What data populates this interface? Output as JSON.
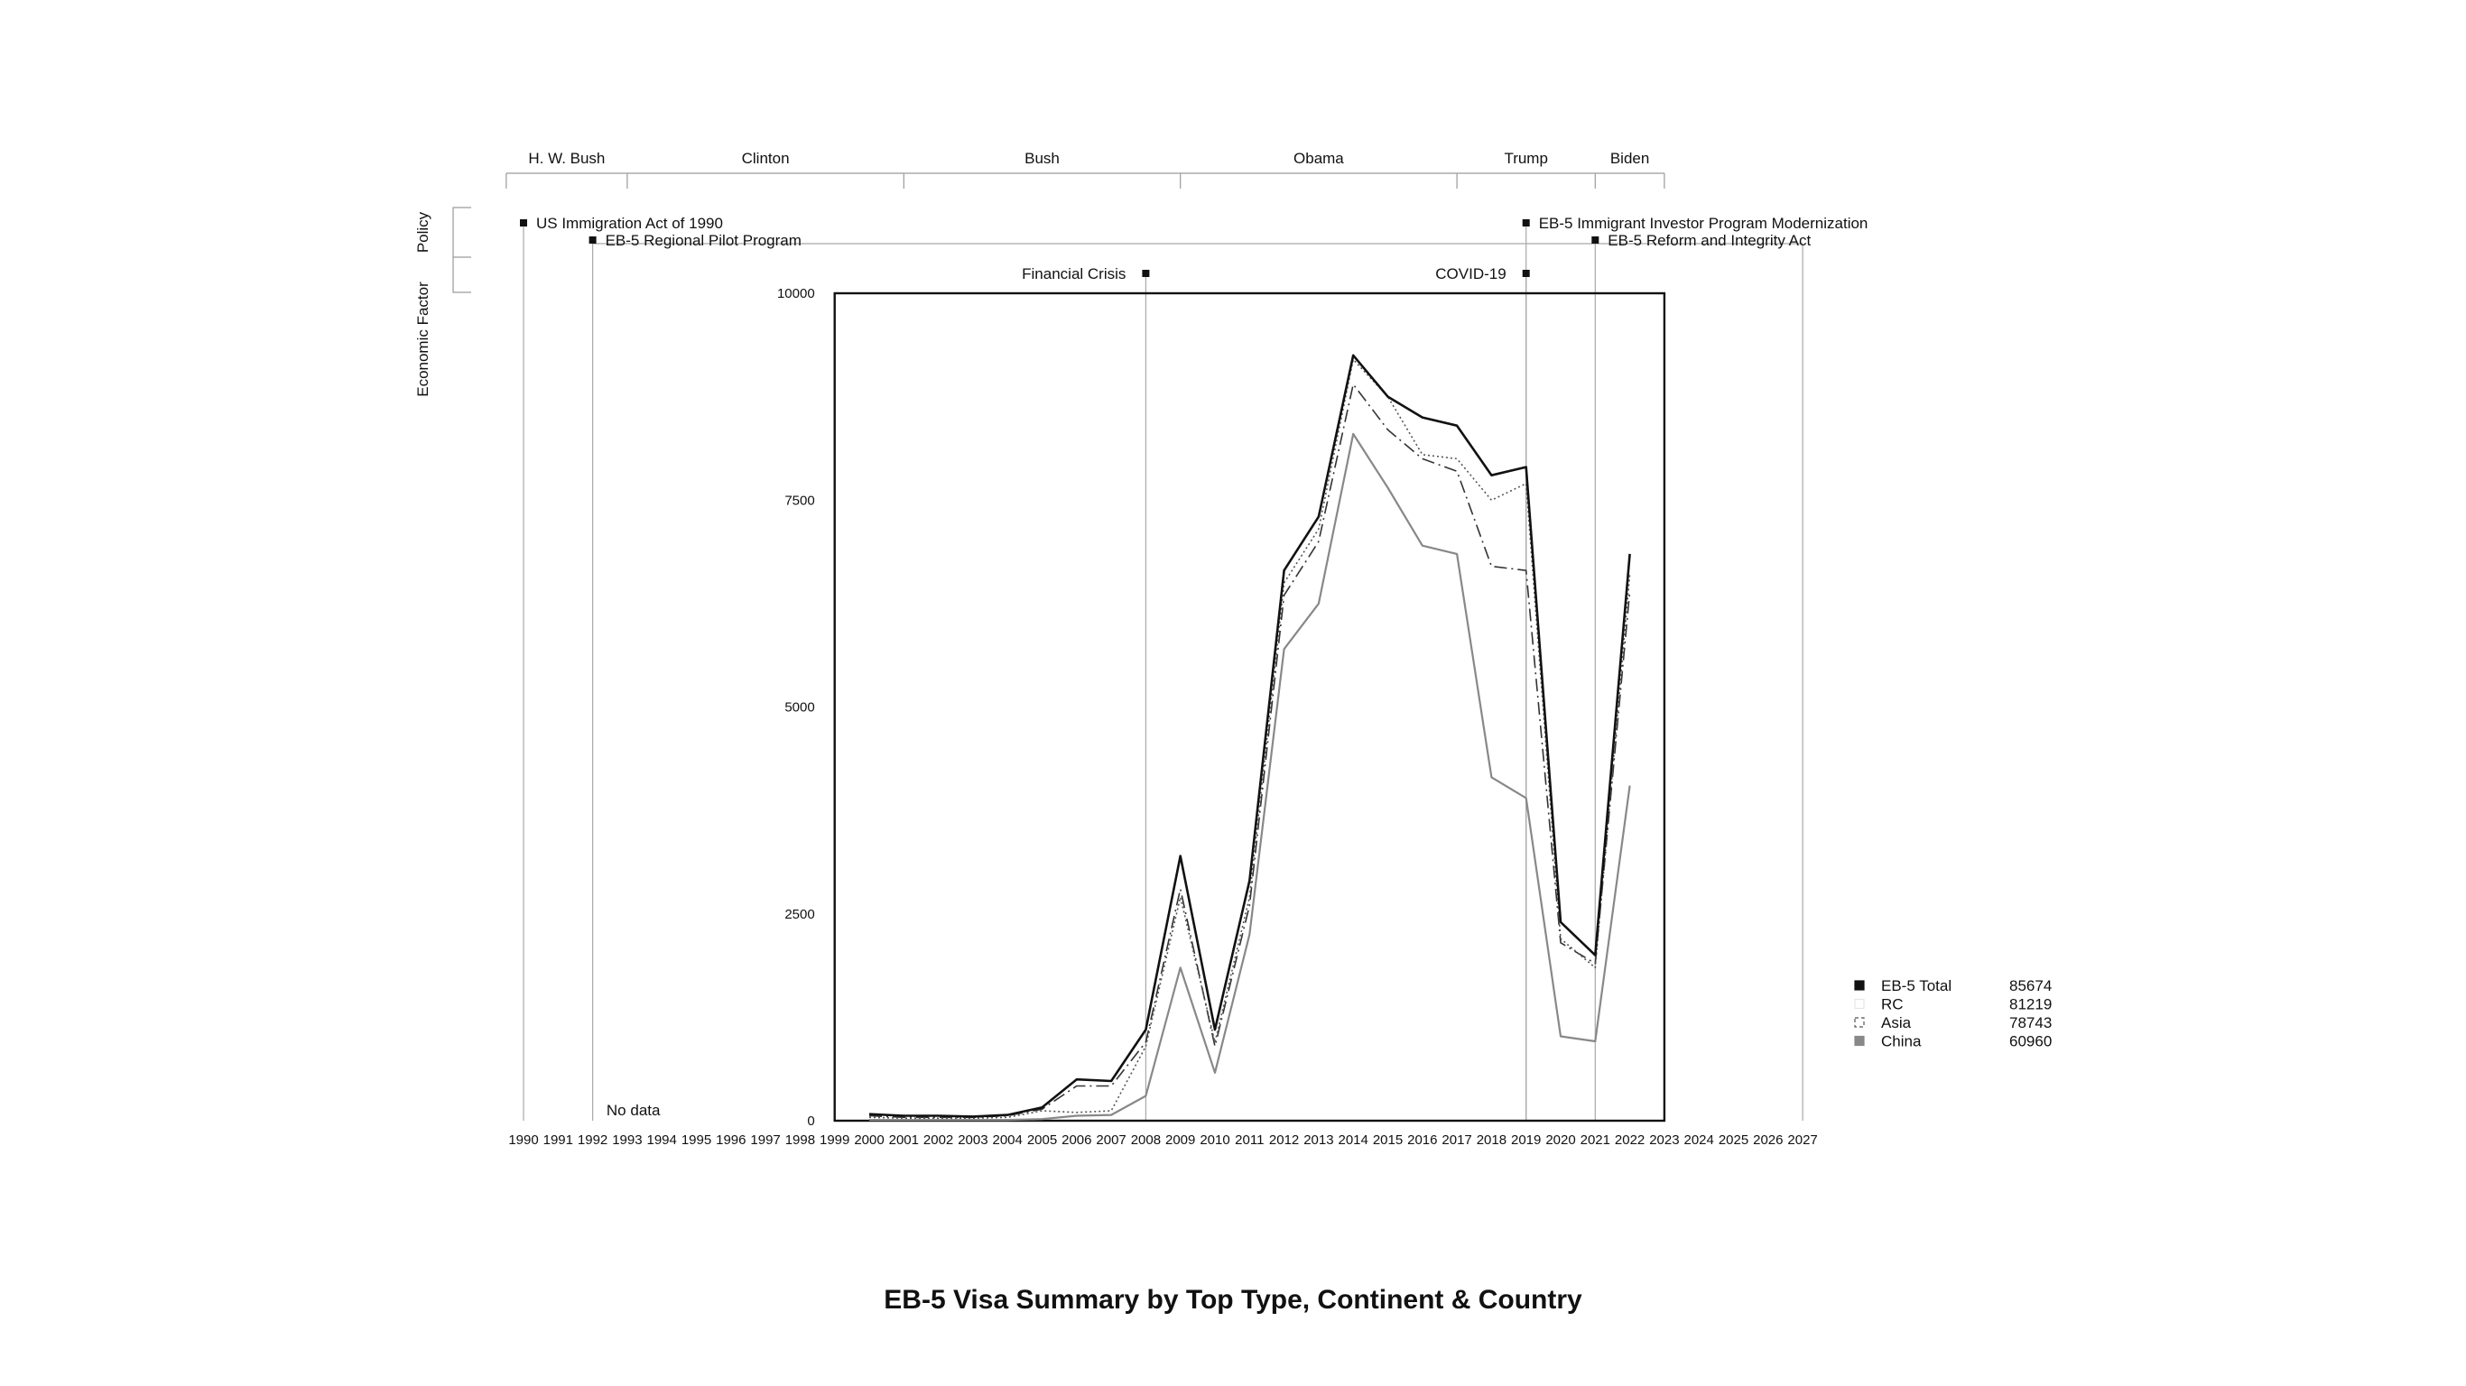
{
  "chart_data": {
    "type": "line",
    "title": "EB-5 Visa Summary by Top Type, Continent & Country",
    "x_axis": {
      "min": 1990,
      "max": 2027,
      "tick_labels": [
        "1990",
        "1991",
        "1992",
        "1993",
        "1994",
        "1995",
        "1996",
        "1997",
        "1998",
        "1999",
        "2000",
        "2001",
        "2002",
        "2003",
        "2004",
        "2005",
        "2006",
        "2007",
        "2008",
        "2009",
        "2010",
        "2011",
        "2012",
        "2013",
        "2014",
        "2015",
        "2016",
        "2017",
        "2018",
        "2019",
        "2020",
        "2021",
        "2022",
        "2023",
        "2024",
        "2025",
        "2026",
        "2027"
      ]
    },
    "y_axis": {
      "min": 0,
      "max": 10000,
      "tick_labels": [
        "0",
        "2500",
        "5000",
        "7500",
        "10000"
      ]
    },
    "plot_x_range": [
      1999,
      2023
    ],
    "no_data_label": "No data",
    "presidents": [
      {
        "name": "H. W. Bush",
        "start": 1989,
        "end": 1993
      },
      {
        "name": "Clinton",
        "start": 1993,
        "end": 2001
      },
      {
        "name": "Bush",
        "start": 2001,
        "end": 2009
      },
      {
        "name": "Obama",
        "start": 2009,
        "end": 2017
      },
      {
        "name": "Trump",
        "start": 2017,
        "end": 2021
      },
      {
        "name": "Biden",
        "start": 2021,
        "end": 2023
      }
    ],
    "row_labels": {
      "policy": "Policy",
      "economic": "Economic Factor"
    },
    "policy_events": [
      {
        "year": 1990,
        "label": "US Immigration Act of 1990",
        "row": 0
      },
      {
        "year": 1992,
        "label": "EB-5 Regional Pilot Program",
        "row": 1
      },
      {
        "year": 2019,
        "label": "EB-5 Immigrant Investor Program Modernization",
        "row": 0
      },
      {
        "year": 2021,
        "label": "EB-5 Reform and Integrity Act",
        "row": 1
      }
    ],
    "economic_events": [
      {
        "year": 2008,
        "label": "Financial Crisis",
        "side": "left"
      },
      {
        "year": 2019,
        "label": "COVID-19",
        "side": "left"
      }
    ],
    "extra_vline_years": [
      2027
    ],
    "x": [
      2000,
      2001,
      2002,
      2003,
      2004,
      2005,
      2006,
      2007,
      2008,
      2009,
      2010,
      2011,
      2012,
      2013,
      2014,
      2015,
      2016,
      2017,
      2018,
      2019,
      2020,
      2021,
      2022
    ],
    "series": [
      {
        "name": "EB-5 Total",
        "total": "85674",
        "color": "#111111",
        "dash": "",
        "width": 2.6,
        "values": [
          80,
          60,
          60,
          50,
          70,
          160,
          500,
          480,
          1100,
          3200,
          1100,
          2900,
          6650,
          7300,
          9250,
          8750,
          8500,
          8400,
          7800,
          7900,
          2400,
          2000,
          6850
        ]
      },
      {
        "name": "RC",
        "total": "81219",
        "color": "#555555",
        "dash": "2,3",
        "width": 1.6,
        "values": [
          40,
          30,
          30,
          30,
          40,
          120,
          100,
          120,
          900,
          2700,
          950,
          2700,
          6500,
          7150,
          9200,
          8750,
          8050,
          8000,
          7500,
          7700,
          2200,
          1850,
          6600
        ]
      },
      {
        "name": "Asia",
        "total": "78743",
        "color": "#333333",
        "dash": "14,5,2,5",
        "width": 1.6,
        "values": [
          60,
          40,
          40,
          40,
          60,
          140,
          420,
          420,
          950,
          2800,
          900,
          2600,
          6350,
          7000,
          8900,
          8350,
          8000,
          7850,
          6700,
          6650,
          2150,
          1900,
          6400
        ]
      },
      {
        "name": "China",
        "total": "60960",
        "color": "#888888",
        "dash": "",
        "width": 2.2,
        "values": [
          10,
          10,
          10,
          10,
          10,
          20,
          60,
          70,
          300,
          1850,
          580,
          2250,
          5700,
          6250,
          8300,
          7650,
          6950,
          6850,
          4150,
          3900,
          1020,
          960,
          4050
        ]
      }
    ],
    "legend_position": "right",
    "grid": false
  }
}
